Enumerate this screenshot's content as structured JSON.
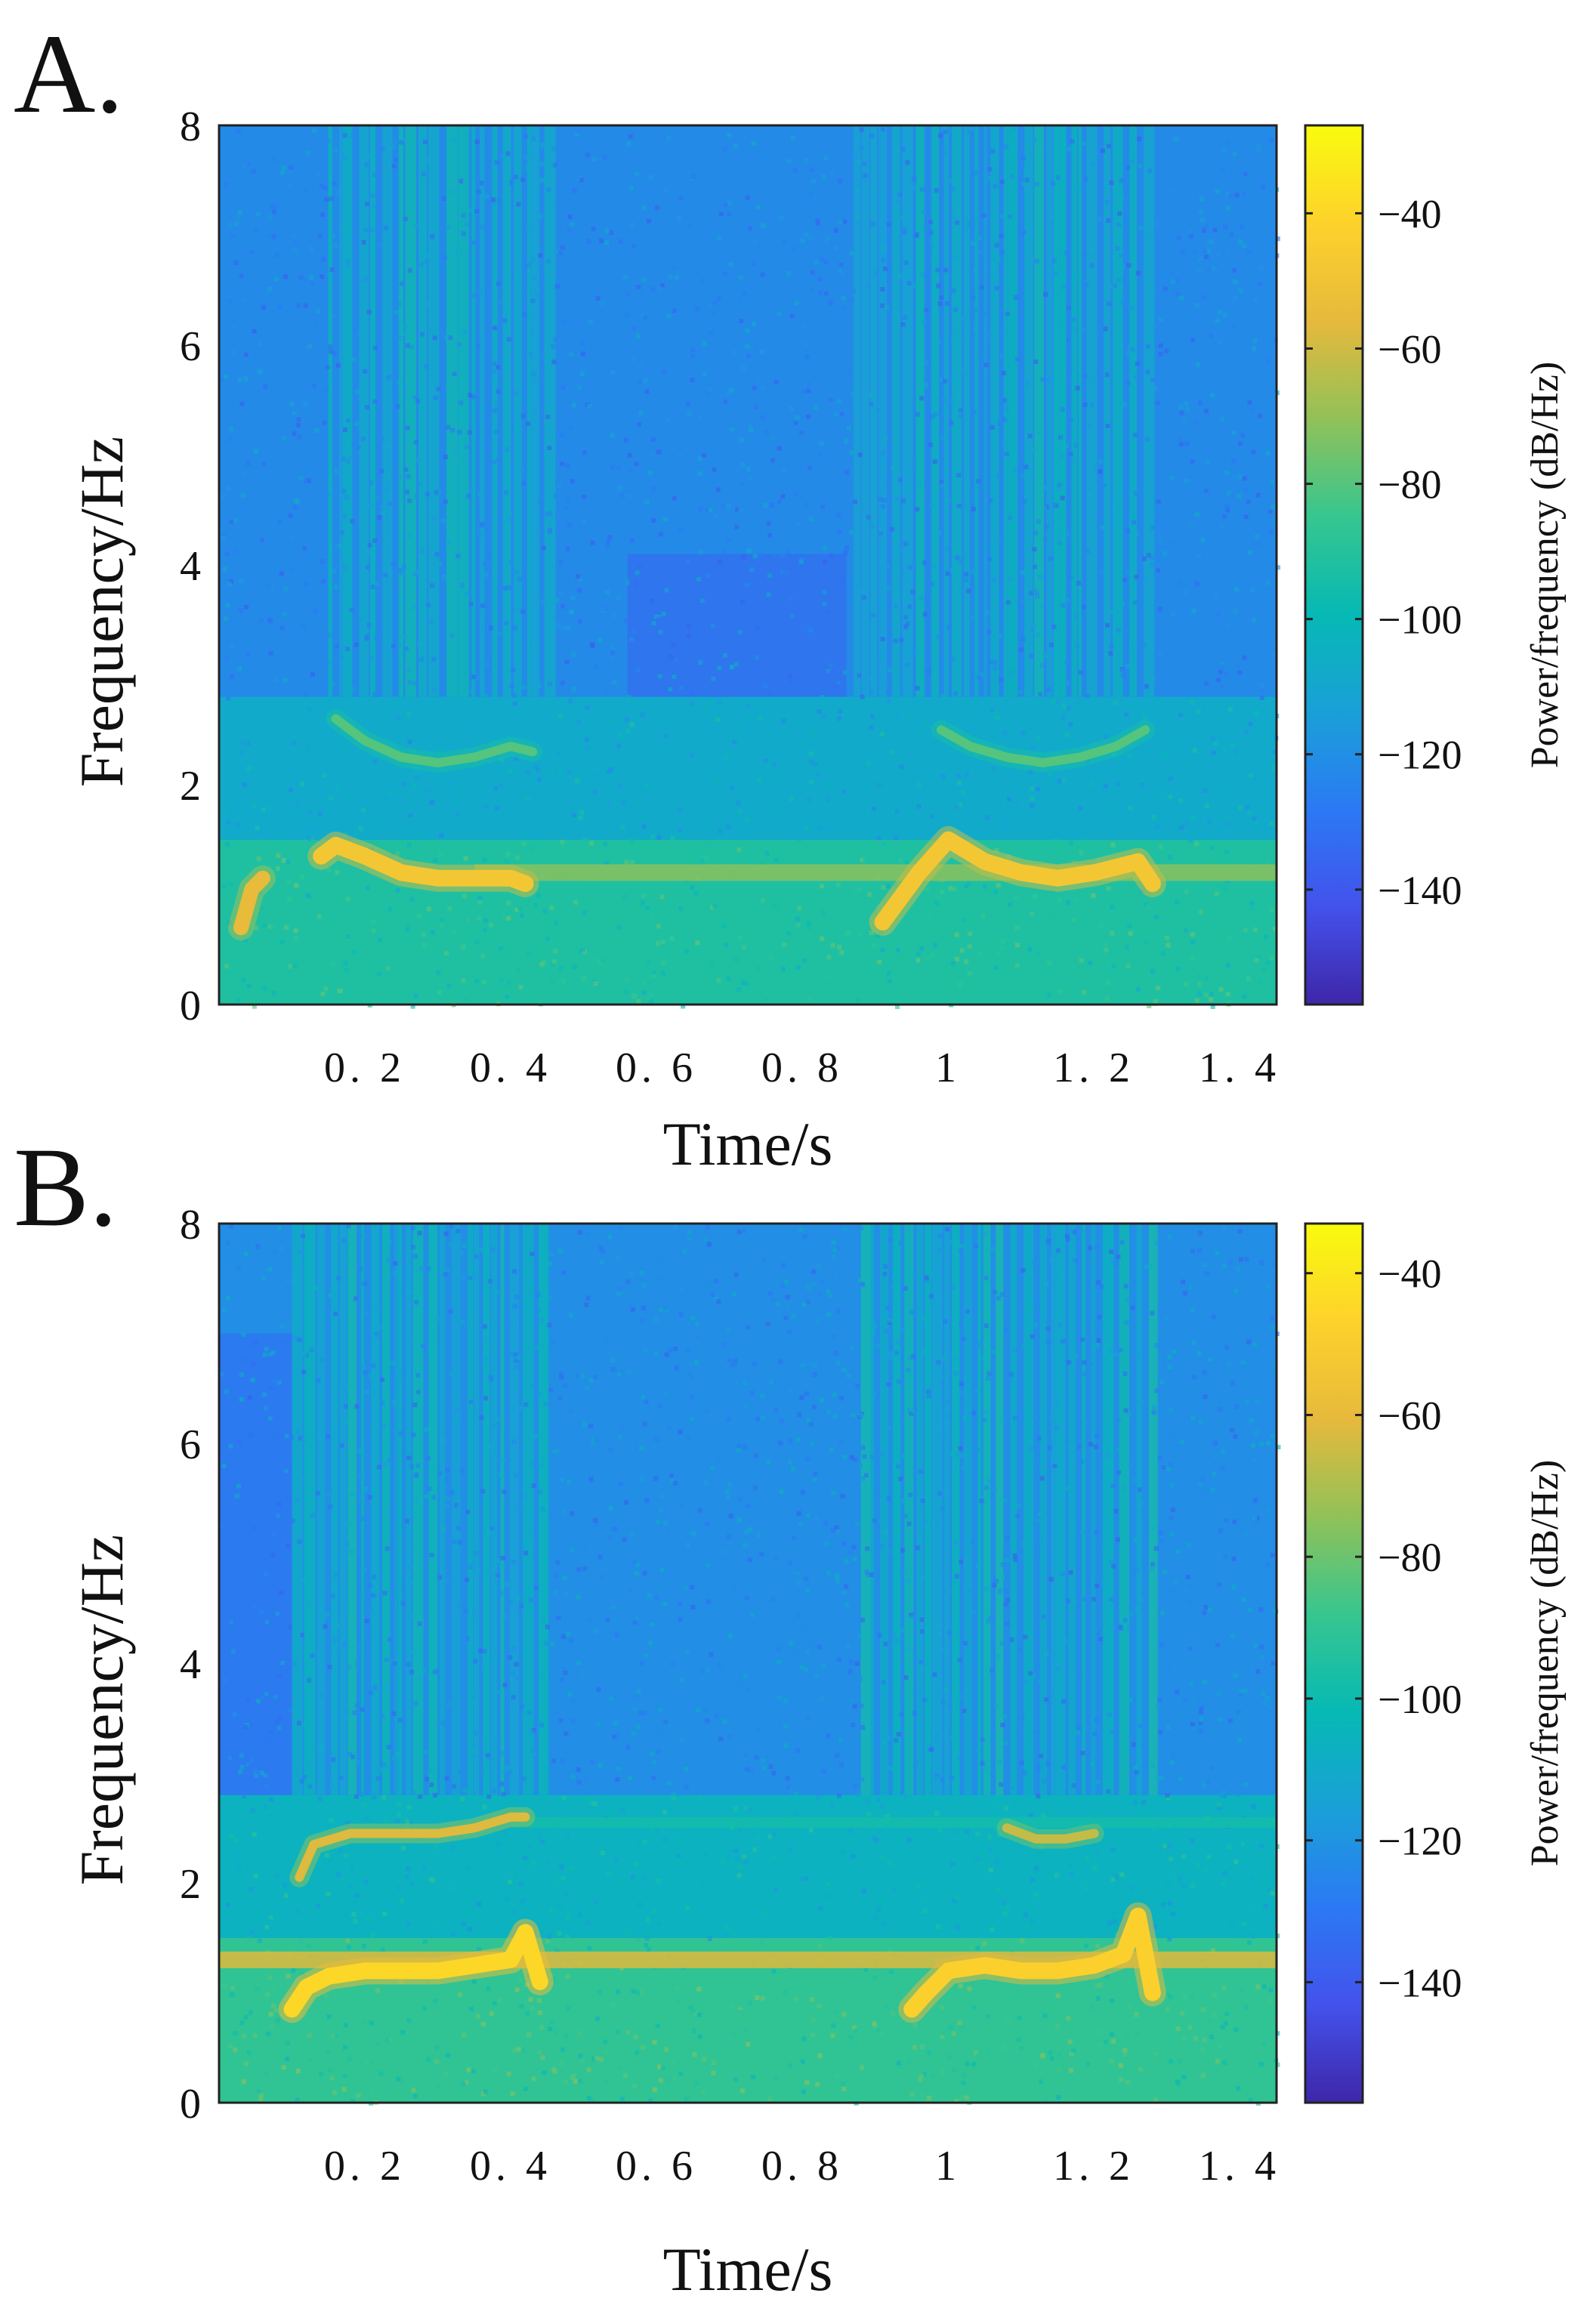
{
  "figure": {
    "panels": [
      {
        "id": "A",
        "label": "A."
      },
      {
        "id": "B",
        "label": "B."
      }
    ]
  },
  "colormap": {
    "name": "parula",
    "stops": [
      "#3e26a8",
      "#4352ec",
      "#2b79f4",
      "#1aa0d8",
      "#06b9b4",
      "#37c68f",
      "#92c158",
      "#e7b93c",
      "#fdd22b",
      "#f9fb0e"
    ]
  },
  "chart_data": [
    {
      "type": "heatmap",
      "panel": "A",
      "title": "",
      "xlabel": "Time/s",
      "ylabel": "Frequency/Hz",
      "xlim": [
        0,
        1.45
      ],
      "ylim": [
        0,
        8
      ],
      "xticks": [
        0.2,
        0.4,
        0.6,
        0.8,
        1,
        1.2,
        1.4
      ],
      "xtick_labels": [
        "0. 2",
        "0. 4",
        "0. 6",
        "0. 8",
        "1",
        "1. 2",
        "1. 4"
      ],
      "yticks": [
        0,
        2,
        4,
        6,
        8
      ],
      "ytick_labels": [
        "0",
        "2",
        "4",
        "6",
        "8"
      ],
      "colorbar": {
        "label": "Power/frequency (dB/Hz)",
        "range": [
          -157,
          -27
        ],
        "ticks": [
          -40,
          -60,
          -80,
          -100,
          -120,
          -140
        ],
        "tick_labels": [
          "−40",
          "−60",
          "−80",
          "−100",
          "−120",
          "−140"
        ]
      },
      "background_db": {
        "low_band_0_to_1.5": -92,
        "mid_band_1.5_to_2.8": -108,
        "high_band_2.8_to_8": -122
      },
      "continuous_line": {
        "freq": 1.2,
        "t_start": 0.35,
        "t_end": 1.45,
        "db": -72
      },
      "bright_columns": [
        {
          "t_start": 0.15,
          "t_end": 0.46,
          "db": -104
        },
        {
          "t_start": 0.87,
          "t_end": 1.28,
          "db": -104
        }
      ],
      "dark_regions": [
        {
          "t_start": 0.56,
          "t_end": 0.86,
          "f_low": 2.8,
          "f_high": 4.1,
          "db": -133
        }
      ],
      "calls": [
        {
          "name": "call-1",
          "fundamental": {
            "t": [
              0.14,
              0.16,
              0.2,
              0.25,
              0.3,
              0.35,
              0.4,
              0.42
            ],
            "f": [
              1.35,
              1.45,
              1.35,
              1.2,
              1.15,
              1.15,
              1.15,
              1.1
            ],
            "db": -48
          },
          "harmonic": {
            "t": [
              0.16,
              0.2,
              0.25,
              0.3,
              0.35,
              0.4,
              0.43
            ],
            "f": [
              2.6,
              2.4,
              2.25,
              2.2,
              2.25,
              2.35,
              2.3
            ],
            "db": -80
          },
          "onset": {
            "t": [
              0.03,
              0.045,
              0.06
            ],
            "f": [
              0.7,
              1.05,
              1.15
            ],
            "db": -55
          }
        },
        {
          "name": "call-2",
          "fundamental": {
            "t": [
              0.91,
              0.96,
              1.0,
              1.05,
              1.1,
              1.15,
              1.2,
              1.26,
              1.28
            ],
            "f": [
              0.75,
              1.2,
              1.5,
              1.3,
              1.2,
              1.15,
              1.2,
              1.3,
              1.1
            ],
            "db": -48
          },
          "harmonic": {
            "t": [
              0.99,
              1.03,
              1.08,
              1.13,
              1.18,
              1.23,
              1.27
            ],
            "f": [
              2.5,
              2.35,
              2.25,
              2.2,
              2.25,
              2.35,
              2.5
            ],
            "db": -80
          },
          "onset": null
        }
      ]
    },
    {
      "type": "heatmap",
      "panel": "B",
      "title": "",
      "xlabel": "Time/s",
      "ylabel": "Frequency/Hz",
      "xlim": [
        0,
        1.45
      ],
      "ylim": [
        0,
        8
      ],
      "xticks": [
        0.2,
        0.4,
        0.6,
        0.8,
        1,
        1.2,
        1.4
      ],
      "xtick_labels": [
        "0. 2",
        "0. 4",
        "0. 6",
        "0. 8",
        "1",
        "1. 2",
        "1. 4"
      ],
      "yticks": [
        0,
        2,
        4,
        6,
        8
      ],
      "ytick_labels": [
        "0",
        "2",
        "4",
        "6",
        "8"
      ],
      "colorbar": {
        "label": "Power/frequency (dB/Hz)",
        "range": [
          -157,
          -33
        ],
        "ticks": [
          -40,
          -60,
          -80,
          -100,
          -120,
          -140
        ],
        "tick_labels": [
          "−40",
          "−60",
          "−80",
          "−100",
          "−120",
          "−140"
        ]
      },
      "background_db": {
        "low_band_0_to_1.5": -90,
        "mid_band_1.5_to_2.8": -106,
        "high_band_2.8_to_8": -122
      },
      "continuous_line": {
        "freq": 1.3,
        "t_start": 0.0,
        "t_end": 1.45,
        "db": -62
      },
      "continuous_harmonic": {
        "freq": 2.55,
        "t_start": 0.4,
        "t_end": 1.45,
        "db": -98
      },
      "bright_columns": [
        {
          "t_start": 0.1,
          "t_end": 0.44,
          "db": -106
        },
        {
          "t_start": 0.88,
          "t_end": 1.28,
          "db": -104
        }
      ],
      "dark_regions": [
        {
          "t_start": 0.0,
          "t_end": 0.1,
          "f_low": 2.8,
          "f_high": 7.0,
          "db": -132
        }
      ],
      "calls": [
        {
          "name": "call-1",
          "fundamental": {
            "t": [
              0.1,
              0.12,
              0.15,
              0.2,
              0.25,
              0.3,
              0.35,
              0.4,
              0.42,
              0.44
            ],
            "f": [
              0.85,
              1.05,
              1.15,
              1.2,
              1.2,
              1.2,
              1.25,
              1.3,
              1.55,
              1.1
            ],
            "db": -45
          },
          "harmonic": {
            "t": [
              0.11,
              0.13,
              0.18,
              0.25,
              0.3,
              0.35,
              0.4,
              0.42
            ],
            "f": [
              2.05,
              2.35,
              2.45,
              2.45,
              2.45,
              2.5,
              2.6,
              2.6
            ],
            "db": -62
          },
          "onset": null
        },
        {
          "name": "call-2",
          "fundamental": {
            "t": [
              0.95,
              0.97,
              1.0,
              1.05,
              1.1,
              1.15,
              1.2,
              1.24,
              1.26,
              1.28
            ],
            "f": [
              0.85,
              1.0,
              1.2,
              1.25,
              1.2,
              1.2,
              1.25,
              1.35,
              1.7,
              1.0
            ],
            "db": -48
          },
          "harmonic": {
            "t": [
              1.08,
              1.12,
              1.16,
              1.2
            ],
            "f": [
              2.5,
              2.4,
              2.4,
              2.45
            ],
            "db": -66
          },
          "onset": null
        }
      ]
    }
  ]
}
